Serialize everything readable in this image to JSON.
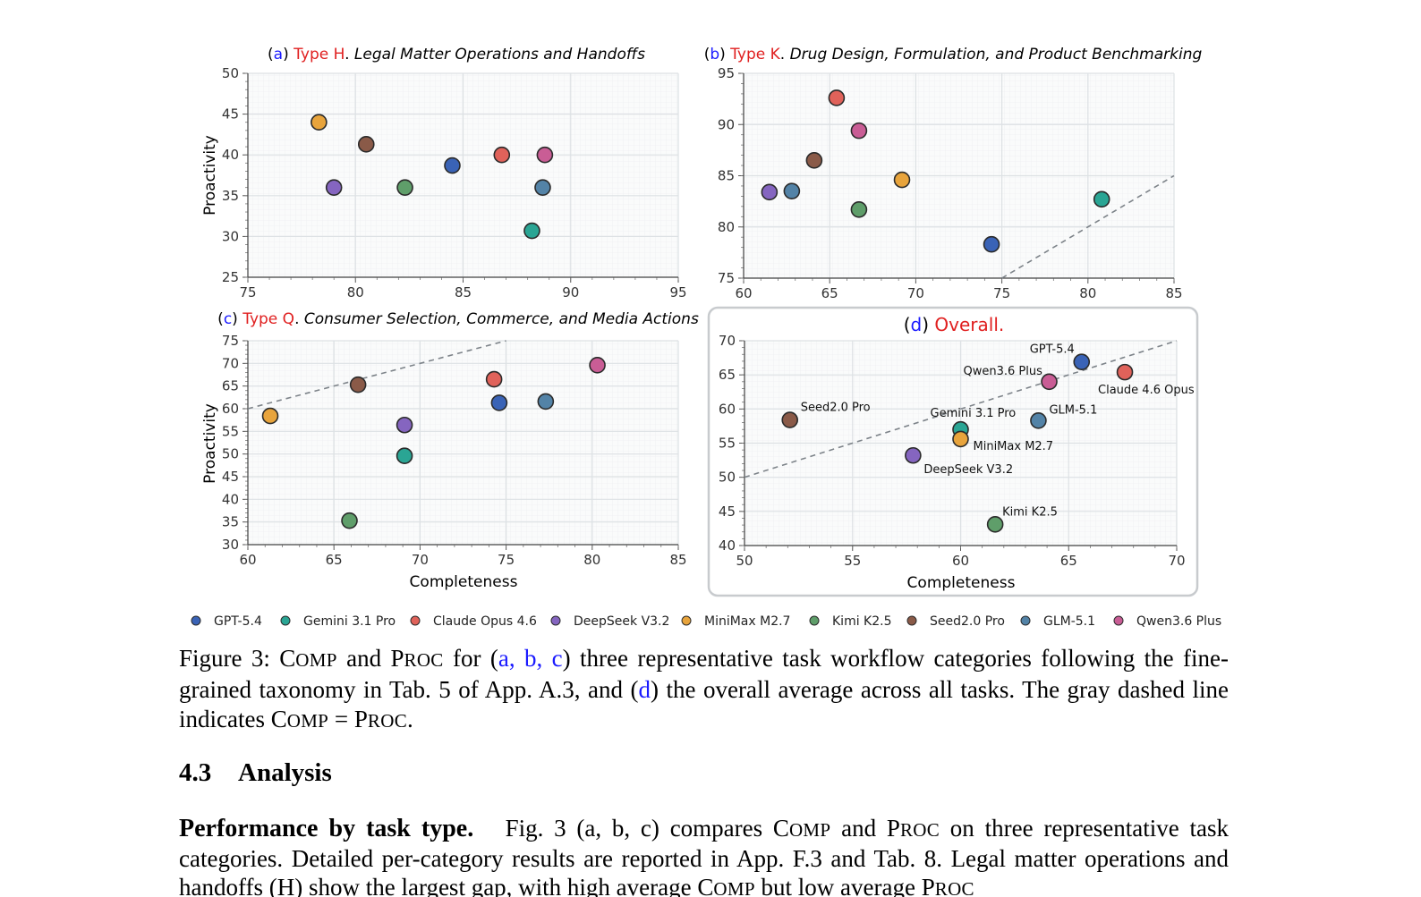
{
  "legend": [
    {
      "name": "GPT-5.4",
      "color": "#3a63b6"
    },
    {
      "name": "Gemini 3.1 Pro",
      "color": "#2aa594"
    },
    {
      "name": "Claude Opus 4.6",
      "color": "#e0625a"
    },
    {
      "name": "DeepSeek V3.2",
      "color": "#8565c0"
    },
    {
      "name": "MiniMax M2.7",
      "color": "#e8a43c"
    },
    {
      "name": "Kimi K2.5",
      "color": "#5f9e6a"
    },
    {
      "name": "Seed2.0 Pro",
      "color": "#8a5a48"
    },
    {
      "name": "GLM-5.1",
      "color": "#5383a7"
    },
    {
      "name": "Qwen3.6 Plus",
      "color": "#c95d95"
    }
  ],
  "chart_data": [
    {
      "type": "scatter",
      "title_parts": [
        "(",
        "a",
        ") ",
        "Type H",
        ". ",
        "Legal Matter Operations and Handoffs"
      ],
      "xlabel": "",
      "ylabel": "Proactivity",
      "xlim": [
        75,
        95
      ],
      "ylim": [
        25,
        50
      ],
      "xticks": [
        75,
        80,
        85,
        90,
        95
      ],
      "yticks": [
        25,
        30,
        35,
        40,
        45,
        50
      ],
      "diagonal": false,
      "points": [
        {
          "series": "MiniMax M2.7",
          "x": 78.3,
          "y": 44.0
        },
        {
          "series": "Seed2.0 Pro",
          "x": 80.5,
          "y": 41.3
        },
        {
          "series": "DeepSeek V3.2",
          "x": 79.0,
          "y": 36.0
        },
        {
          "series": "Kimi K2.5",
          "x": 82.3,
          "y": 36.0
        },
        {
          "series": "GPT-5.4",
          "x": 84.5,
          "y": 38.7
        },
        {
          "series": "Claude Opus 4.6",
          "x": 86.8,
          "y": 40.0
        },
        {
          "series": "Qwen3.6 Plus",
          "x": 88.8,
          "y": 40.0
        },
        {
          "series": "GLM-5.1",
          "x": 88.7,
          "y": 36.0
        },
        {
          "series": "Gemini 3.1 Pro",
          "x": 88.2,
          "y": 30.7
        }
      ]
    },
    {
      "type": "scatter",
      "title_parts": [
        "(",
        "b",
        ") ",
        "Type K",
        ". ",
        "Drug Design, Formulation, and Product Benchmarking"
      ],
      "xlabel": "",
      "ylabel": "",
      "xlim": [
        60,
        85
      ],
      "ylim": [
        75,
        95
      ],
      "xticks": [
        60,
        65,
        70,
        75,
        80,
        85
      ],
      "yticks": [
        75,
        80,
        85,
        90,
        95
      ],
      "diagonal": true,
      "points": [
        {
          "series": "Claude Opus 4.6",
          "x": 65.4,
          "y": 92.6
        },
        {
          "series": "Qwen3.6 Plus",
          "x": 66.7,
          "y": 89.4
        },
        {
          "series": "Seed2.0 Pro",
          "x": 64.1,
          "y": 86.5
        },
        {
          "series": "DeepSeek V3.2",
          "x": 61.5,
          "y": 83.4
        },
        {
          "series": "GLM-5.1",
          "x": 62.8,
          "y": 83.5
        },
        {
          "series": "Kimi K2.5",
          "x": 66.7,
          "y": 81.7
        },
        {
          "series": "MiniMax M2.7",
          "x": 69.2,
          "y": 84.6
        },
        {
          "series": "GPT-5.4",
          "x": 74.4,
          "y": 78.3
        },
        {
          "series": "Gemini 3.1 Pro",
          "x": 80.8,
          "y": 82.7
        }
      ]
    },
    {
      "type": "scatter",
      "title_parts": [
        "(",
        "c",
        ") ",
        "Type Q",
        ". ",
        "Consumer Selection, Commerce, and Media Actions"
      ],
      "xlabel": "Completeness",
      "ylabel": "Proactivity",
      "xlim": [
        60,
        85
      ],
      "ylim": [
        30,
        75
      ],
      "xticks": [
        60,
        65,
        70,
        75,
        80,
        85
      ],
      "yticks": [
        30,
        35,
        40,
        45,
        50,
        55,
        60,
        65,
        70,
        75
      ],
      "diagonal": true,
      "points": [
        {
          "series": "MiniMax M2.7",
          "x": 61.3,
          "y": 58.4
        },
        {
          "series": "Seed2.0 Pro",
          "x": 66.4,
          "y": 65.3
        },
        {
          "series": "DeepSeek V3.2",
          "x": 69.1,
          "y": 56.4
        },
        {
          "series": "Gemini 3.1 Pro",
          "x": 69.1,
          "y": 49.6
        },
        {
          "series": "Kimi K2.5",
          "x": 65.9,
          "y": 35.3
        },
        {
          "series": "Claude Opus 4.6",
          "x": 74.3,
          "y": 66.5
        },
        {
          "series": "GPT-5.4",
          "x": 74.6,
          "y": 61.3
        },
        {
          "series": "GLM-5.1",
          "x": 77.3,
          "y": 61.6
        },
        {
          "series": "Qwen3.6 Plus",
          "x": 80.3,
          "y": 69.6
        }
      ]
    },
    {
      "type": "scatter",
      "title_parts": [
        "(",
        "d",
        ") ",
        "Overall.",
        "",
        ""
      ],
      "xlabel": "Completeness",
      "ylabel": "",
      "xlim": [
        50,
        70
      ],
      "ylim": [
        40,
        70
      ],
      "xticks": [
        50,
        55,
        60,
        65,
        70
      ],
      "yticks": [
        40,
        45,
        50,
        55,
        60,
        65,
        70
      ],
      "diagonal": true,
      "points": [
        {
          "series": "Seed2.0 Pro",
          "x": 52.1,
          "y": 58.4,
          "label": "Seed2.0 Pro"
        },
        {
          "series": "DeepSeek V3.2",
          "x": 57.8,
          "y": 53.2,
          "label": "DeepSeek V3.2"
        },
        {
          "series": "Gemini 3.1 Pro",
          "x": 60.0,
          "y": 57.0,
          "label": "Gemini 3.1 Pro"
        },
        {
          "series": "MiniMax M2.7",
          "x": 60.0,
          "y": 55.6,
          "label": "MiniMax M2.7"
        },
        {
          "series": "Kimi K2.5",
          "x": 61.6,
          "y": 43.1,
          "label": "Kimi K2.5"
        },
        {
          "series": "Qwen3.6 Plus",
          "x": 64.1,
          "y": 64.0,
          "label": "Qwen3.6 Plus"
        },
        {
          "series": "GLM-5.1",
          "x": 63.6,
          "y": 58.3,
          "label": "GLM-5.1"
        },
        {
          "series": "GPT-5.4",
          "x": 65.6,
          "y": 66.9,
          "label": "GPT-5.4"
        },
        {
          "series": "Claude Opus 4.6",
          "x": 67.6,
          "y": 65.4,
          "label": "Claude 4.6 Opus"
        }
      ]
    }
  ],
  "caption": {
    "figure_label": "Figure 3: ",
    "comp_c": "C",
    "comp_rest": "OMP",
    "and1": " and ",
    "proc_p": "P",
    "proc_rest": "ROC",
    "for_open": " for (",
    "abc": "a, b, c",
    "rest1": ") three representative task workflow categories following the fine-grained taxonomy in Tab. 5 of App. A.3, and (",
    "d": "d",
    "rest2": ") the overall average across all tasks. The gray dashed line indicates ",
    "eq": " = ",
    "end": "."
  },
  "section": {
    "number": "4.3",
    "title": "Analysis"
  },
  "paragraph": {
    "lead": "Performance by task type.",
    "text1": "   Fig. 3 (a, b, c) compares ",
    "comp_c": "C",
    "comp_rest": "OMP",
    "and": " and ",
    "proc_p": "P",
    "proc_rest": "ROC",
    "text2": " on three representative task categories. Detailed per-category results are reported in App. F.3 and Tab. 8. Legal matter operations and handoffs (H) show the largest gap, with high average ",
    "text3": " but low average ",
    "text4": ""
  }
}
